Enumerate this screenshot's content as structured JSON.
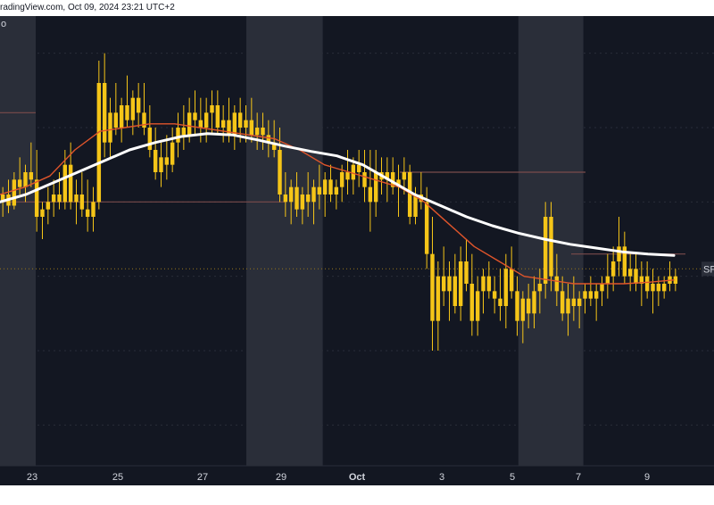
{
  "header": {
    "text": "radingView.com, Oct 09, 2024 23:21 UTC+2",
    "left_glyph": "o"
  },
  "colors": {
    "background": "#131722",
    "weekend_shade": "#2a2e39",
    "candle": "#f5c518",
    "ema_fast": "#e0552b",
    "ema_slow": "#ffffff",
    "level_line": "#7a4b4b",
    "dotted_line": "#8a6d1c",
    "grid": "#2a2e39"
  },
  "price_label": {
    "text": "SF"
  },
  "chart_data": {
    "type": "candlestick",
    "title": "",
    "x_axis": {
      "ticks": [
        "23",
        "25",
        "27",
        "29",
        "Oct",
        "3",
        "5",
        "7",
        "9"
      ],
      "bold_ticks": [
        "Oct"
      ]
    },
    "candles": [
      [
        0.4,
        0.42,
        0.38,
        0.41
      ],
      [
        0.41,
        0.43,
        0.385,
        0.395
      ],
      [
        0.395,
        0.44,
        0.39,
        0.43
      ],
      [
        0.43,
        0.46,
        0.41,
        0.42
      ],
      [
        0.42,
        0.45,
        0.4,
        0.44
      ],
      [
        0.44,
        0.48,
        0.42,
        0.43
      ],
      [
        0.43,
        0.47,
        0.36,
        0.38
      ],
      [
        0.38,
        0.4,
        0.35,
        0.39
      ],
      [
        0.39,
        0.42,
        0.37,
        0.4
      ],
      [
        0.4,
        0.43,
        0.38,
        0.41
      ],
      [
        0.41,
        0.44,
        0.39,
        0.4
      ],
      [
        0.4,
        0.47,
        0.39,
        0.45
      ],
      [
        0.45,
        0.48,
        0.39,
        0.4
      ],
      [
        0.4,
        0.43,
        0.37,
        0.41
      ],
      [
        0.41,
        0.44,
        0.38,
        0.39
      ],
      [
        0.39,
        0.43,
        0.36,
        0.38
      ],
      [
        0.38,
        0.42,
        0.36,
        0.4
      ],
      [
        0.4,
        0.59,
        0.39,
        0.56
      ],
      [
        0.56,
        0.6,
        0.46,
        0.48
      ],
      [
        0.48,
        0.54,
        0.46,
        0.52
      ],
      [
        0.52,
        0.56,
        0.49,
        0.5
      ],
      [
        0.5,
        0.54,
        0.48,
        0.53
      ],
      [
        0.53,
        0.57,
        0.5,
        0.51
      ],
      [
        0.51,
        0.55,
        0.49,
        0.54
      ],
      [
        0.54,
        0.56,
        0.5,
        0.52
      ],
      [
        0.52,
        0.56,
        0.49,
        0.5
      ],
      [
        0.5,
        0.53,
        0.46,
        0.47
      ],
      [
        0.47,
        0.5,
        0.43,
        0.44
      ],
      [
        0.44,
        0.48,
        0.42,
        0.46
      ],
      [
        0.46,
        0.49,
        0.43,
        0.45
      ],
      [
        0.45,
        0.5,
        0.44,
        0.48
      ],
      [
        0.48,
        0.52,
        0.46,
        0.5
      ],
      [
        0.5,
        0.53,
        0.47,
        0.49
      ],
      [
        0.49,
        0.54,
        0.48,
        0.52
      ],
      [
        0.52,
        0.55,
        0.49,
        0.51
      ],
      [
        0.51,
        0.54,
        0.48,
        0.5
      ],
      [
        0.5,
        0.54,
        0.48,
        0.52
      ],
      [
        0.52,
        0.55,
        0.49,
        0.53
      ],
      [
        0.53,
        0.55,
        0.49,
        0.5
      ],
      [
        0.5,
        0.53,
        0.48,
        0.51
      ],
      [
        0.51,
        0.54,
        0.48,
        0.49
      ],
      [
        0.49,
        0.53,
        0.47,
        0.52
      ],
      [
        0.52,
        0.54,
        0.48,
        0.5
      ],
      [
        0.5,
        0.53,
        0.48,
        0.51
      ],
      [
        0.51,
        0.54,
        0.48,
        0.49
      ],
      [
        0.49,
        0.52,
        0.47,
        0.5
      ],
      [
        0.5,
        0.52,
        0.47,
        0.49
      ],
      [
        0.49,
        0.51,
        0.46,
        0.48
      ],
      [
        0.48,
        0.51,
        0.46,
        0.47
      ],
      [
        0.47,
        0.5,
        0.4,
        0.41
      ],
      [
        0.41,
        0.44,
        0.38,
        0.4
      ],
      [
        0.4,
        0.43,
        0.37,
        0.42
      ],
      [
        0.42,
        0.44,
        0.38,
        0.39
      ],
      [
        0.39,
        0.42,
        0.37,
        0.41
      ],
      [
        0.41,
        0.44,
        0.38,
        0.4
      ],
      [
        0.4,
        0.43,
        0.37,
        0.42
      ],
      [
        0.42,
        0.45,
        0.39,
        0.41
      ],
      [
        0.41,
        0.44,
        0.38,
        0.43
      ],
      [
        0.43,
        0.45,
        0.4,
        0.41
      ],
      [
        0.41,
        0.43,
        0.39,
        0.42
      ],
      [
        0.42,
        0.45,
        0.4,
        0.44
      ],
      [
        0.44,
        0.47,
        0.41,
        0.43
      ],
      [
        0.43,
        0.46,
        0.41,
        0.45
      ],
      [
        0.45,
        0.47,
        0.42,
        0.44
      ],
      [
        0.44,
        0.47,
        0.4,
        0.42
      ],
      [
        0.42,
        0.47,
        0.36,
        0.4
      ],
      [
        0.4,
        0.47,
        0.38,
        0.44
      ],
      [
        0.44,
        0.46,
        0.41,
        0.43
      ],
      [
        0.43,
        0.46,
        0.4,
        0.44
      ],
      [
        0.44,
        0.46,
        0.41,
        0.42
      ],
      [
        0.42,
        0.45,
        0.38,
        0.43
      ],
      [
        0.43,
        0.46,
        0.41,
        0.44
      ],
      [
        0.44,
        0.45,
        0.37,
        0.38
      ],
      [
        0.38,
        0.42,
        0.37,
        0.41
      ],
      [
        0.41,
        0.44,
        0.39,
        0.4
      ],
      [
        0.4,
        0.42,
        0.31,
        0.33
      ],
      [
        0.33,
        0.38,
        0.2,
        0.24
      ],
      [
        0.24,
        0.32,
        0.2,
        0.3
      ],
      [
        0.3,
        0.34,
        0.26,
        0.28
      ],
      [
        0.28,
        0.32,
        0.24,
        0.3
      ],
      [
        0.3,
        0.33,
        0.25,
        0.26
      ],
      [
        0.26,
        0.34,
        0.24,
        0.32
      ],
      [
        0.32,
        0.35,
        0.28,
        0.29
      ],
      [
        0.29,
        0.33,
        0.22,
        0.24
      ],
      [
        0.24,
        0.3,
        0.22,
        0.28
      ],
      [
        0.28,
        0.31,
        0.25,
        0.3
      ],
      [
        0.3,
        0.32,
        0.27,
        0.28
      ],
      [
        0.28,
        0.3,
        0.25,
        0.27
      ],
      [
        0.27,
        0.31,
        0.24,
        0.26
      ],
      [
        0.26,
        0.33,
        0.23,
        0.31
      ],
      [
        0.31,
        0.34,
        0.27,
        0.28
      ],
      [
        0.28,
        0.3,
        0.22,
        0.24
      ],
      [
        0.24,
        0.28,
        0.21,
        0.27
      ],
      [
        0.27,
        0.29,
        0.23,
        0.25
      ],
      [
        0.25,
        0.3,
        0.23,
        0.28
      ],
      [
        0.28,
        0.31,
        0.25,
        0.29
      ],
      [
        0.29,
        0.4,
        0.27,
        0.38
      ],
      [
        0.38,
        0.4,
        0.28,
        0.3
      ],
      [
        0.3,
        0.33,
        0.26,
        0.28
      ],
      [
        0.28,
        0.3,
        0.24,
        0.25
      ],
      [
        0.25,
        0.29,
        0.22,
        0.27
      ],
      [
        0.27,
        0.3,
        0.24,
        0.26
      ],
      [
        0.26,
        0.28,
        0.23,
        0.27
      ],
      [
        0.27,
        0.29,
        0.25,
        0.28
      ],
      [
        0.28,
        0.3,
        0.26,
        0.27
      ],
      [
        0.27,
        0.29,
        0.24,
        0.28
      ],
      [
        0.28,
        0.3,
        0.26,
        0.29
      ],
      [
        0.29,
        0.33,
        0.27,
        0.3
      ],
      [
        0.3,
        0.34,
        0.28,
        0.32
      ],
      [
        0.32,
        0.38,
        0.3,
        0.34
      ],
      [
        0.34,
        0.36,
        0.29,
        0.3
      ],
      [
        0.3,
        0.33,
        0.28,
        0.31
      ],
      [
        0.31,
        0.33,
        0.28,
        0.29
      ],
      [
        0.29,
        0.32,
        0.26,
        0.3
      ],
      [
        0.3,
        0.32,
        0.27,
        0.28
      ],
      [
        0.28,
        0.31,
        0.25,
        0.29
      ],
      [
        0.29,
        0.3,
        0.26,
        0.28
      ],
      [
        0.28,
        0.3,
        0.27,
        0.29
      ],
      [
        0.29,
        0.32,
        0.28,
        0.3
      ],
      [
        0.3,
        0.31,
        0.28,
        0.29
      ]
    ],
    "series": [
      {
        "type": "line",
        "color": "#e0552b",
        "values": [
          0.41,
          0.42,
          0.435,
          0.47,
          0.495,
          0.5,
          0.505,
          0.505,
          0.5,
          0.495,
          0.49,
          0.485,
          0.47,
          0.45,
          0.44,
          0.43,
          0.42,
          0.4,
          0.37,
          0.34,
          0.32,
          0.3,
          0.295,
          0.29,
          0.29,
          0.29,
          0.292,
          0.295
        ]
      },
      {
        "type": "line",
        "color": "#ffffff",
        "values": [
          0.4,
          0.41,
          0.425,
          0.44,
          0.455,
          0.47,
          0.48,
          0.488,
          0.492,
          0.49,
          0.483,
          0.475,
          0.468,
          0.462,
          0.45,
          0.43,
          0.41,
          0.395,
          0.38,
          0.368,
          0.358,
          0.35,
          0.343,
          0.338,
          0.333,
          0.33,
          0.328
        ]
      }
    ],
    "levels": [
      {
        "value": 0.52,
        "x_from": 0.0,
        "x_to": 0.05
      },
      {
        "value": 0.4,
        "x_from": 0.0,
        "x_to": 0.4
      },
      {
        "value": 0.44,
        "x_from": 0.56,
        "x_to": 0.82
      },
      {
        "value": 0.31,
        "x_from": 0.0,
        "x_to": 1.0,
        "style": "dotted"
      },
      {
        "value": 0.33,
        "x_from": 0.8,
        "x_to": 0.96
      }
    ],
    "y_range": [
      0.05,
      0.65
    ],
    "weekend_bands": [
      [
        0.0,
        0.05
      ],
      [
        0.345,
        0.452
      ],
      [
        0.726,
        0.817
      ]
    ]
  }
}
